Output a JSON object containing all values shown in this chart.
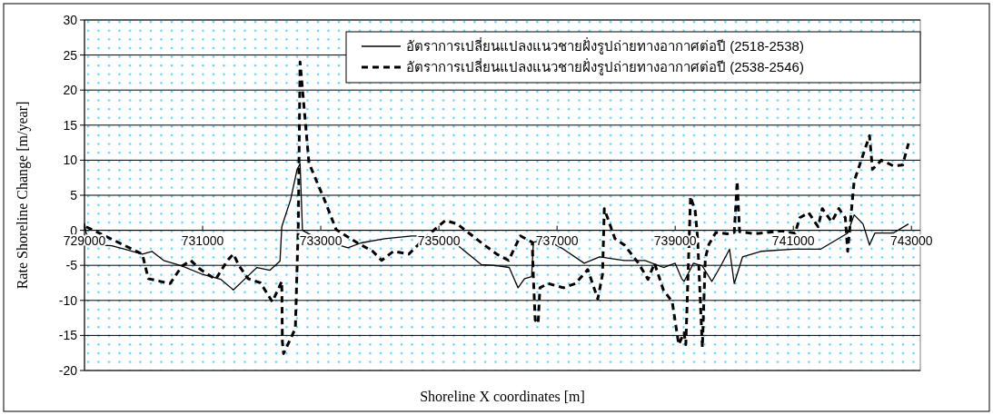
{
  "chart_data": {
    "type": "line",
    "xlabel": "Shoreline X coordinates [m]",
    "ylabel": "Rate Shoreline Change [m/year]",
    "xlim": [
      729000,
      743150
    ],
    "xticks": [
      729000,
      731000,
      733000,
      735000,
      737000,
      739000,
      741000,
      743000
    ],
    "ylim": [
      -20,
      30
    ],
    "yticks": [
      -20,
      -15,
      -10,
      -5,
      0,
      5,
      10,
      15,
      20,
      25,
      30
    ],
    "grid": "y",
    "legend": "top right",
    "series": [
      {
        "name": "อัตราการเปลี่ยนแปลงแนวชายฝั่งรูปถ่ายทางอากาศต่อปี (2518-2538)",
        "color": "#000000",
        "line_style": "solid",
        "x": [
          729000,
          729030,
          729260,
          729460,
          729680,
          729980,
          730140,
          730340,
          730650,
          731000,
          731310,
          731520,
          731720,
          731920,
          732140,
          732310,
          732340,
          732490,
          732600,
          732650,
          732690,
          732950,
          733460,
          733680,
          734080,
          734540,
          734910,
          735310,
          735720,
          735920,
          736190,
          736340,
          736450,
          736570,
          736600,
          736830,
          737110,
          737460,
          737720,
          738140,
          738490,
          738800,
          739000,
          739110,
          739150,
          739310,
          739460,
          739620,
          739770,
          739920,
          740000,
          740140,
          740450,
          741000,
          741460,
          741920,
          742030,
          742180,
          742290,
          742380,
          742690,
          742950
        ],
        "values": [
          1,
          -0.5,
          -2.1,
          -2.2,
          -2.7,
          -3.4,
          -3,
          -4.3,
          -5.1,
          -6.3,
          -7,
          -8.5,
          -6.9,
          -5.3,
          -5.7,
          -4.4,
          0.5,
          4.4,
          8.7,
          9.5,
          0,
          -1.2,
          -2.5,
          -1.8,
          -1.2,
          -0.8,
          -0.8,
          -2.1,
          -4.9,
          -5,
          -5.3,
          -8.2,
          -6.9,
          -6.6,
          -1.7,
          -1.4,
          -2.7,
          -4.7,
          -3.8,
          -4.3,
          -4.3,
          -5.3,
          -4.7,
          -6.9,
          -7.3,
          -4.7,
          -5.1,
          -7.3,
          -5.1,
          -2.7,
          -7.6,
          -3.8,
          -3,
          -2.7,
          -2.7,
          -0.4,
          2.2,
          0.9,
          -2.1,
          -0.4,
          -0.4,
          0.9
        ]
      },
      {
        "name": "อัตราการเปลี่ยนแปลงแนวชายฝั่งรูปถ่ายทางอากาศต่อปี (2538-2546)",
        "color": "#000000",
        "line_style": "dashed",
        "x": [
          729030,
          729980,
          730080,
          730450,
          730650,
          730800,
          730950,
          731220,
          731420,
          731520,
          731620,
          731770,
          731980,
          732180,
          732340,
          732350,
          732370,
          732570,
          732620,
          732650,
          732800,
          733060,
          733260,
          733620,
          733880,
          734030,
          734230,
          734490,
          734800,
          735110,
          735310,
          735570,
          735770,
          735980,
          736180,
          736380,
          736580,
          736600,
          736630,
          736680,
          736710,
          736850,
          737110,
          737310,
          737520,
          737690,
          737770,
          737800,
          737980,
          738140,
          738380,
          738540,
          738650,
          738800,
          738950,
          739060,
          739150,
          739180,
          739260,
          739340,
          739380,
          739460,
          739510,
          739570,
          739690,
          739880,
          740000,
          740050,
          740090,
          740340,
          740800,
          741030,
          741110,
          741260,
          741420,
          741490,
          741650,
          741770,
          741880,
          741920,
          742030,
          742290,
          742340,
          742490,
          742690,
          742850,
          742950
        ],
        "values": [
          0.5,
          -3.4,
          -6.9,
          -7.6,
          -5.1,
          -4.3,
          -5.5,
          -7,
          -4.3,
          -3.4,
          -5.1,
          -6.9,
          -7.5,
          -10.2,
          -7.3,
          -15.9,
          -17.6,
          -14,
          0.9,
          24,
          9.6,
          4.4,
          0.1,
          -1.8,
          -3,
          -4.3,
          -3,
          -3.4,
          -0.8,
          1.4,
          0.9,
          -0.8,
          -2.1,
          -3.4,
          -4.3,
          -0.8,
          -1.7,
          -6.9,
          -12.8,
          -13.3,
          -8.2,
          -7.6,
          -8.2,
          -7.6,
          -5.6,
          -9.8,
          -6.3,
          3.1,
          -1.2,
          -2.1,
          -4.7,
          -7,
          -4.7,
          -8.5,
          -10.2,
          -16.3,
          -14.6,
          -16.3,
          4.8,
          2.7,
          -1.2,
          -16.7,
          -4,
          -2,
          -0.3,
          -0.5,
          -0.3,
          7,
          -0.2,
          -0.5,
          -0.1,
          -0.4,
          1.8,
          2.5,
          0.5,
          3.1,
          1.2,
          3.1,
          1.8,
          -3,
          7,
          13.5,
          8.7,
          10,
          9.2,
          9.3,
          12.4
        ]
      }
    ]
  }
}
